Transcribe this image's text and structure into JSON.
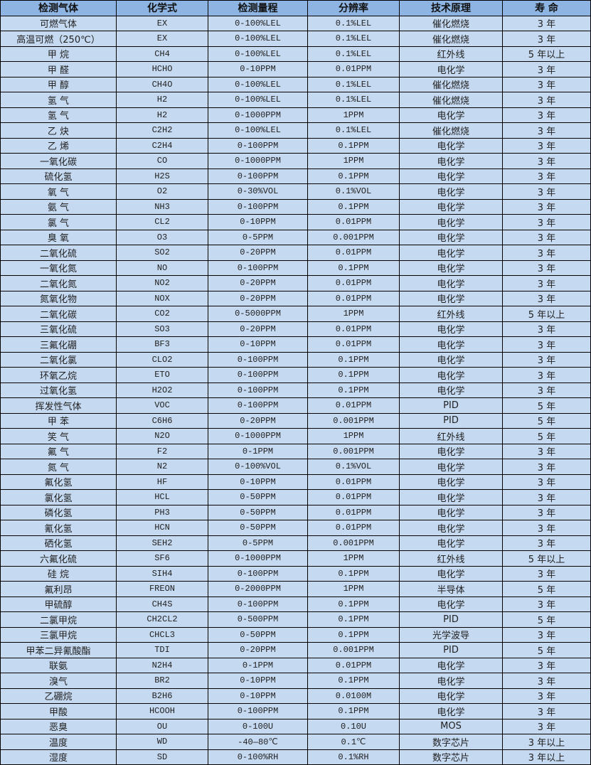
{
  "headers": [
    "检测气体",
    "化学式",
    "检测量程",
    "分辨率",
    "技术原理",
    "寿 命"
  ],
  "colors": {
    "header_bg": "#8db4e2",
    "row_bg": "#c5d9f1",
    "border": "#000000"
  },
  "rows": [
    [
      "可燃气体",
      "EX",
      "0-100%LEL",
      "0.1%LEL",
      "催化燃烧",
      "3 年"
    ],
    [
      "高温可燃（250℃）",
      "EX",
      "0-100%LEL",
      "0.1%LEL",
      "催化燃烧",
      "3 年"
    ],
    [
      "甲 烷",
      "CH4",
      "0-100%LEL",
      "0.1%LEL",
      "红外线",
      "5 年以上"
    ],
    [
      "甲 醛",
      "HCHO",
      "0-10PPM",
      "0.01PPM",
      "电化学",
      "3 年"
    ],
    [
      "甲 醇",
      "CH4O",
      "0-100%LEL",
      "0.1%LEL",
      "催化燃烧",
      "3 年"
    ],
    [
      "氢 气",
      "H2",
      "0-100%LEL",
      "0.1%LEL",
      "催化燃烧",
      "3 年"
    ],
    [
      "氢 气",
      "H2",
      "0-1000PPM",
      "1PPM",
      "电化学",
      "3 年"
    ],
    [
      "乙 炔",
      "C2H2",
      "0-100%LEL",
      "0.1%LEL",
      "催化燃烧",
      "3 年"
    ],
    [
      "乙 烯",
      "C2H4",
      "0-100PPM",
      "0.1PPM",
      "电化学",
      "3 年"
    ],
    [
      "一氧化碳",
      "CO",
      "0-1000PPM",
      "1PPM",
      "电化学",
      "3 年"
    ],
    [
      "硫化氢",
      "H2S",
      "0-100PPM",
      "0.1PPM",
      "电化学",
      "3 年"
    ],
    [
      "氧 气",
      "O2",
      "0-30%VOL",
      "0.1%VOL",
      "电化学",
      "3 年"
    ],
    [
      "氨 气",
      "NH3",
      "0-100PPM",
      "0.1PPM",
      "电化学",
      "3 年"
    ],
    [
      "氯 气",
      "CL2",
      "0-10PPM",
      "0.01PPM",
      "电化学",
      "3 年"
    ],
    [
      "臭 氧",
      "O3",
      "0-5PPM",
      "0.001PPM",
      "电化学",
      "3 年"
    ],
    [
      "二氧化硫",
      "SO2",
      "0-20PPM",
      "0.01PPM",
      "电化学",
      "3 年"
    ],
    [
      "一氧化氮",
      "NO",
      "0-100PPM",
      "0.1PPM",
      "电化学",
      "3 年"
    ],
    [
      "二氧化氮",
      "NO2",
      "0-20PPM",
      "0.01PPM",
      "电化学",
      "3 年"
    ],
    [
      "氮氧化物",
      "NOX",
      "0-20PPM",
      "0.01PPM",
      "电化学",
      "3 年"
    ],
    [
      "二氧化碳",
      "CO2",
      "0-5000PPM",
      "1PPM",
      "红外线",
      "5 年以上"
    ],
    [
      "三氧化硫",
      "SO3",
      "0-20PPM",
      "0.01PPM",
      "电化学",
      "3 年"
    ],
    [
      "三氟化硼",
      "BF3",
      "0-10PPM",
      "0.01PPM",
      "电化学",
      "3 年"
    ],
    [
      "二氧化氯",
      "CLO2",
      "0-100PPM",
      "0.1PPM",
      "电化学",
      "3 年"
    ],
    [
      "环氧乙烷",
      "ETO",
      "0-100PPM",
      "0.1PPM",
      "电化学",
      "3 年"
    ],
    [
      "过氧化氢",
      "H2O2",
      "0-100PPM",
      "0.1PPM",
      "电化学",
      "3 年"
    ],
    [
      "挥发性气体",
      "VOC",
      "0-100PPM",
      "0.01PPM",
      "PID",
      "5 年"
    ],
    [
      "甲 苯",
      "C6H6",
      "0-20PPM",
      "0.001PPM",
      "PID",
      "5 年"
    ],
    [
      "笑 气",
      "N2O",
      "0-1000PPM",
      "1PPM",
      "红外线",
      "5 年"
    ],
    [
      "氟 气",
      "F2",
      "0-1PPM",
      "0.001PPM",
      "电化学",
      "3 年"
    ],
    [
      "氮 气",
      "N2",
      "0-100%VOL",
      "0.1%VOL",
      "电化学",
      "3 年"
    ],
    [
      "氟化氢",
      "HF",
      "0-10PPM",
      "0.01PPM",
      "电化学",
      "3 年"
    ],
    [
      "氯化氢",
      "HCL",
      "0-50PPM",
      "0.01PPM",
      "电化学",
      "3 年"
    ],
    [
      "磷化氢",
      "PH3",
      "0-50PPM",
      "0.01PPM",
      "电化学",
      "3 年"
    ],
    [
      "氰化氢",
      "HCN",
      "0-50PPM",
      "0.01PPM",
      "电化学",
      "3 年"
    ],
    [
      "硒化氢",
      "SEH2",
      "0-5PPM",
      "0.001PPM",
      "电化学",
      "3 年"
    ],
    [
      "六氟化硫",
      "SF6",
      "0-1000PPM",
      "1PPM",
      "红外线",
      "5 年以上"
    ],
    [
      "硅 烷",
      "SIH4",
      "0-100PPM",
      "0.1PPM",
      "电化学",
      "3 年"
    ],
    [
      "氟利昂",
      "FREON",
      "0-2000PPM",
      "1PPM",
      "半导体",
      "5 年"
    ],
    [
      "甲硫醇",
      "CH4S",
      "0-100PPM",
      "0.1PPM",
      "电化学",
      "3 年"
    ],
    [
      "二氯甲烷",
      "CH2CL2",
      "0-500PPM",
      "0.1PPM",
      "PID",
      "5 年"
    ],
    [
      "三氯甲烷",
      "CHCL3",
      "0-50PPM",
      "0.1PPM",
      "光学波导",
      "3 年"
    ],
    [
      "甲苯二异氰酸酯",
      "TDI",
      "0-20PPM",
      "0.001PPM",
      "PID",
      "5 年"
    ],
    [
      "联氨",
      "N2H4",
      "0-1PPM",
      "0.01PPM",
      "电化学",
      "3 年"
    ],
    [
      "溴气",
      "BR2",
      "0-10PPM",
      "0.1PPM",
      "电化学",
      "3 年"
    ],
    [
      "乙硼烷",
      "B2H6",
      "0-10PPM",
      "0.0100M",
      "电化学",
      "3 年"
    ],
    [
      "甲酸",
      "HCOOH",
      "0-100PPM",
      "0.1PPM",
      "电化学",
      "3 年"
    ],
    [
      "恶臭",
      "OU",
      "0-100U",
      "0.10U",
      "MOS",
      "3 年"
    ],
    [
      "温度",
      "WD",
      "-40—80℃",
      "0.1℃",
      "数字芯片",
      "3 年以上"
    ],
    [
      "湿度",
      "SD",
      "0-100%RH",
      "0.1%RH",
      "数字芯片",
      "3 年以上"
    ]
  ]
}
